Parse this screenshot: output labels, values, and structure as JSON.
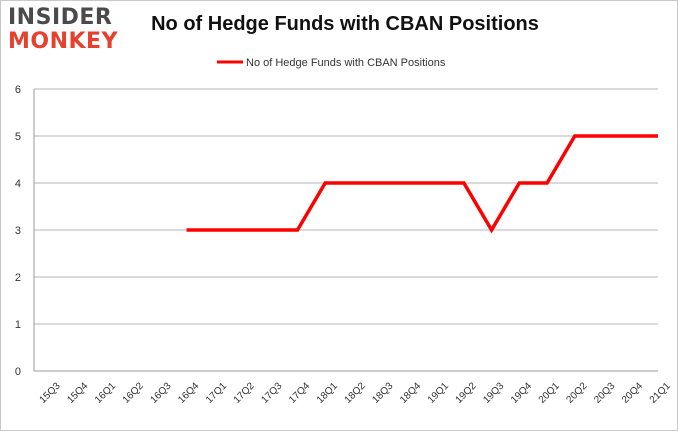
{
  "brand": {
    "line1": "INSIDER",
    "line2": "MONKEY"
  },
  "chart_data": {
    "type": "line",
    "title": "No of Hedge Funds with CBAN Positions",
    "xlabel": "",
    "ylabel": "",
    "categories": [
      "15Q3",
      "15Q4",
      "16Q1",
      "16Q2",
      "16Q3",
      "16Q4",
      "17Q1",
      "17Q2",
      "17Q3",
      "17Q4",
      "18Q1",
      "18Q2",
      "18Q3",
      "18Q4",
      "19Q1",
      "19Q2",
      "19Q3",
      "19Q4",
      "20Q1",
      "20Q2",
      "20Q3",
      "20Q4",
      "21Q1"
    ],
    "series": [
      {
        "name": "No of Hedge Funds with CBAN Positions",
        "color": "#ff0000",
        "values": [
          null,
          null,
          null,
          null,
          null,
          3,
          3,
          3,
          3,
          3,
          4,
          4,
          4,
          4,
          4,
          4,
          3,
          4,
          4,
          5,
          5,
          5,
          5
        ]
      }
    ],
    "yticks": [
      0,
      1,
      2,
      3,
      4,
      5,
      6
    ],
    "ylim": [
      0,
      6
    ],
    "grid": true,
    "legend": "top-center"
  }
}
